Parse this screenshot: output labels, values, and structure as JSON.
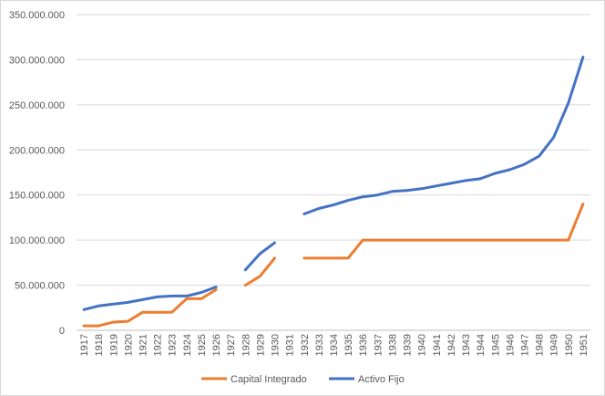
{
  "chart_data": {
    "type": "line",
    "categories": [
      "1917",
      "1918",
      "1919",
      "1920",
      "1921",
      "1922",
      "1923",
      "1924",
      "1925",
      "1926",
      "1927",
      "1928",
      "1929",
      "1930",
      "1931",
      "1932",
      "1933",
      "1934",
      "1935",
      "1936",
      "1937",
      "1938",
      "1939",
      "1940",
      "1941",
      "1942",
      "1943",
      "1944",
      "1945",
      "1946",
      "1947",
      "1948",
      "1949",
      "1950",
      "1951"
    ],
    "y_ticks": [
      "0",
      "50.000.000",
      "100.000.000",
      "150.000.000",
      "200.000.000",
      "250.000.000",
      "300.000.000",
      "350.000.000"
    ],
    "ylim": [
      0,
      350000000
    ],
    "grid": true,
    "legend_position": "bottom",
    "series": [
      {
        "name": "Capital Integrado",
        "color": "#ED7D31",
        "values": [
          5000000,
          5000000,
          9000000,
          10000000,
          20000000,
          20000000,
          20000000,
          35000000,
          35000000,
          45000000,
          null,
          50000000,
          60000000,
          80000000,
          null,
          80000000,
          80000000,
          80000000,
          80000000,
          100000000,
          100000000,
          100000000,
          100000000,
          100000000,
          100000000,
          100000000,
          100000000,
          100000000,
          100000000,
          100000000,
          100000000,
          100000000,
          100000000,
          100000000,
          140000000
        ]
      },
      {
        "name": "Activo Fijo",
        "color": "#4472C4",
        "values": [
          23000000,
          27000000,
          29000000,
          31000000,
          34000000,
          37000000,
          38000000,
          38000000,
          42000000,
          48000000,
          null,
          67000000,
          85000000,
          97000000,
          null,
          129000000,
          135000000,
          139000000,
          144000000,
          148000000,
          150000000,
          154000000,
          155000000,
          157000000,
          160000000,
          163000000,
          166000000,
          168000000,
          174000000,
          178000000,
          184000000,
          193000000,
          214000000,
          252000000,
          303000000
        ]
      }
    ]
  }
}
